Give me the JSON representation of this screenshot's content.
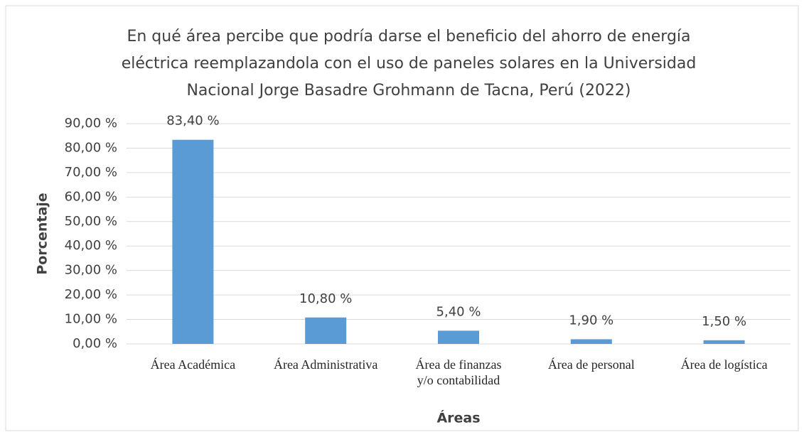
{
  "chart_data": {
    "type": "bar",
    "title": [
      "En qué área percibe que podría darse el beneficio del  ahorro de energía",
      "eléctrica reemplazandola con el uso de paneles solares en la Universidad",
      "Nacional Jorge Basadre Grohmann de Tacna, Perú (2022)"
    ],
    "categories": [
      "Área Académica",
      "Área Administrativa",
      "Área de finanzas y/o contabilidad",
      "Área de personal",
      "Área de logística"
    ],
    "values": [
      83.4,
      10.8,
      5.4,
      1.9,
      1.5
    ],
    "value_labels": [
      "83,40 %",
      "10,80 %",
      "5,40 %",
      "1,90 %",
      "1,50 %"
    ],
    "color": "#5b9bd5",
    "ylabel": "Porcentaje",
    "xlabel": "Áreas",
    "ylim": [
      0,
      90
    ],
    "yticks": [
      {
        "value": 0,
        "label": "0,00 %"
      },
      {
        "value": 10,
        "label": "10,00 %"
      },
      {
        "value": 20,
        "label": "20,00 %"
      },
      {
        "value": 30,
        "label": "30,00 %"
      },
      {
        "value": 40,
        "label": "40,00 %"
      },
      {
        "value": 50,
        "label": "50,00 %"
      },
      {
        "value": 60,
        "label": "60,00 %"
      },
      {
        "value": 70,
        "label": "70,00 %"
      },
      {
        "value": 80,
        "label": "80,00 %"
      },
      {
        "value": 90,
        "label": "90,00 %"
      }
    ],
    "grid": true
  }
}
